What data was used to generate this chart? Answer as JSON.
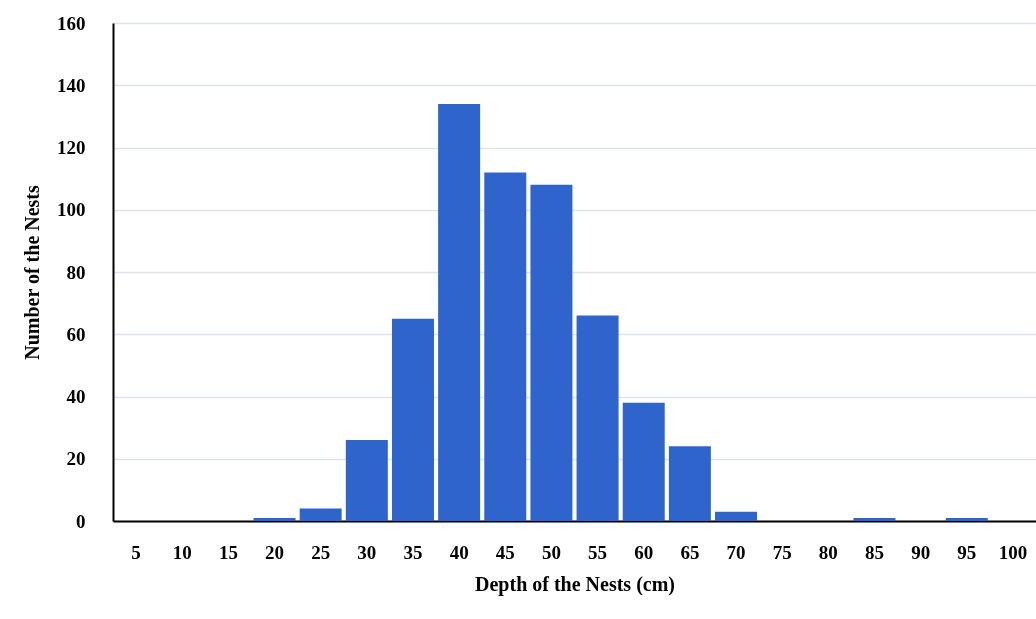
{
  "chart_data": {
    "type": "bar",
    "xlabel": "Depth of the Nests (cm)",
    "ylabel": "Number of the Nests",
    "categories": [
      "5",
      "10",
      "15",
      "20",
      "25",
      "30",
      "35",
      "40",
      "45",
      "50",
      "55",
      "60",
      "65",
      "70",
      "75",
      "80",
      "85",
      "90",
      "95",
      "100"
    ],
    "values": [
      0,
      0,
      0,
      1,
      4,
      26,
      65,
      134,
      112,
      108,
      66,
      38,
      24,
      3,
      0,
      0,
      1,
      0,
      1,
      0
    ],
    "color": "#2e64cc",
    "ylim": [
      0,
      160
    ],
    "yticks": [
      0,
      20,
      40,
      60,
      80,
      100,
      120,
      140,
      160
    ],
    "grid": "y"
  }
}
